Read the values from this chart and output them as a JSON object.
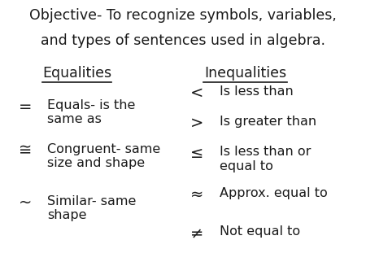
{
  "title_line1": "Objective- To recognize symbols, variables,",
  "title_line2": "and types of sentences used in algebra.",
  "bg_color": "#ffffff",
  "text_color": "#1a1a1a",
  "left_header": "Equalities",
  "right_header": "Inequalities",
  "left_items": [
    {
      "symbol": "=",
      "desc": "Equals- is the\nsame as"
    },
    {
      "symbol": "≅",
      "desc": "Congruent- same\nsize and shape"
    },
    {
      "symbol": "~",
      "desc": "Similar- same\nshape"
    }
  ],
  "right_items": [
    {
      "symbol": "<",
      "desc": "Is less than"
    },
    {
      "symbol": ">",
      "desc": "Is greater than"
    },
    {
      "symbol": "≤",
      "desc": "Is less than or\nequal to"
    },
    {
      "symbol": "≈",
      "desc": "Approx. equal to"
    },
    {
      "symbol": "≠",
      "desc": "Not equal to"
    }
  ],
  "title_fontsize": 12.5,
  "header_fontsize": 12.5,
  "item_fontsize": 11.5,
  "symbol_fontsize": 14
}
